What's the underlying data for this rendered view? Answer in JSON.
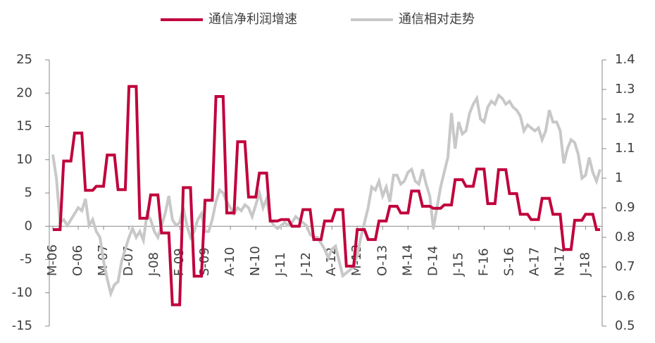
{
  "chart_data": {
    "type": "line",
    "categories": [
      "M-06",
      null,
      null,
      null,
      null,
      null,
      null,
      "O-06",
      null,
      null,
      null,
      null,
      null,
      null,
      "M-07",
      null,
      null,
      null,
      null,
      null,
      null,
      "D-07",
      null,
      null,
      null,
      null,
      null,
      null,
      "J-08",
      null,
      null,
      null,
      null,
      null,
      null,
      "F-09",
      null,
      null,
      null,
      null,
      null,
      null,
      "S-09",
      null,
      null,
      null,
      null,
      null,
      null,
      "A-10",
      null,
      null,
      null,
      null,
      null,
      null,
      "N-10",
      null,
      null,
      null,
      null,
      null,
      null,
      "J-11",
      null,
      null,
      null,
      null,
      null,
      null,
      "J-12",
      null,
      null,
      null,
      null,
      null,
      null,
      "A-12",
      null,
      null,
      null,
      null,
      null,
      null,
      "M-13",
      null,
      null,
      null,
      null,
      null,
      null,
      "O-13",
      null,
      null,
      null,
      null,
      null,
      null,
      "M-14",
      null,
      null,
      null,
      null,
      null,
      null,
      "D-14",
      null,
      null,
      null,
      null,
      null,
      null,
      "J-15",
      null,
      null,
      null,
      null,
      null,
      null,
      "F-16",
      null,
      null,
      null,
      null,
      null,
      null,
      "S-16",
      null,
      null,
      null,
      null,
      null,
      null,
      "A-17",
      null,
      null,
      null,
      null,
      null,
      null,
      "N-17",
      null,
      null,
      null,
      null,
      null,
      null,
      "J-18",
      null,
      null,
      null,
      null
    ],
    "series": [
      {
        "name": "通信净利润增速",
        "color": "#c0003c",
        "axis": "y",
        "values": [
          -0.5,
          -0.5,
          -0.5,
          9.8,
          9.8,
          9.8,
          14,
          14,
          14,
          5.4,
          5.4,
          5.4,
          6,
          6,
          6,
          10.7,
          10.7,
          10.7,
          5.5,
          5.5,
          5.5,
          21,
          21,
          21,
          1.2,
          1.2,
          1.2,
          4.7,
          4.7,
          4.7,
          -1,
          -1,
          -1,
          -11.8,
          -11.8,
          -11.8,
          5.8,
          5.8,
          5.8,
          -7.5,
          -7.5,
          -7.5,
          3.9,
          3.9,
          3.9,
          19.5,
          19.5,
          19.5,
          2,
          2,
          2,
          12.7,
          12.7,
          12.7,
          4.4,
          4.4,
          4.4,
          8,
          8,
          8,
          0.8,
          0.8,
          0.8,
          1,
          1,
          1,
          0,
          0,
          0,
          2.5,
          2.5,
          2.5,
          -2,
          -2,
          -2,
          0.8,
          0.8,
          0.8,
          2.5,
          2.5,
          2.5,
          -6,
          -6,
          -6,
          -0.5,
          -0.5,
          -0.5,
          -2,
          -2,
          -2,
          0.8,
          0.8,
          0.8,
          3,
          3,
          3,
          2,
          2,
          2,
          5.3,
          5.3,
          5.3,
          3,
          3,
          3,
          2.7,
          2.7,
          2.7,
          3.2,
          3.2,
          3.2,
          7,
          7,
          7,
          6,
          6,
          6,
          8.6,
          8.6,
          8.6,
          3.4,
          3.4,
          3.4,
          8.5,
          8.5,
          8.5,
          4.9,
          4.9,
          4.9,
          1.8,
          1.8,
          1.8,
          1,
          1,
          1,
          4.2,
          4.2,
          4.2,
          1.8,
          1.8,
          1.8,
          -3.5,
          -3.5,
          -3.5,
          0.9,
          0.9,
          0.9,
          1.8,
          1.8,
          1.8,
          -0.5,
          -0.5
        ]
      },
      {
        "name": "通信相对走势",
        "color": "#c8c8c8",
        "axis": "y2",
        "values": [
          1.08,
          1.0,
          0.85,
          0.86,
          0.84,
          0.86,
          0.88,
          0.9,
          0.89,
          0.93,
          0.84,
          0.86,
          0.82,
          0.8,
          0.72,
          0.66,
          0.61,
          0.64,
          0.65,
          0.72,
          0.76,
          0.8,
          0.83,
          0.8,
          0.82,
          0.79,
          0.88,
          0.86,
          0.82,
          0.8,
          0.84,
          0.88,
          0.94,
          0.86,
          0.84,
          0.85,
          0.9,
          0.84,
          0.8,
          0.82,
          0.86,
          0.88,
          0.82,
          0.82,
          0.86,
          0.92,
          0.96,
          0.95,
          0.92,
          0.9,
          0.88,
          0.9,
          0.89,
          0.91,
          0.9,
          0.87,
          0.91,
          0.95,
          0.9,
          0.93,
          0.86,
          0.84,
          0.83,
          0.84,
          0.85,
          0.84,
          0.85,
          0.87,
          0.86,
          0.85,
          0.84,
          0.81,
          0.8,
          0.8,
          0.78,
          0.76,
          0.73,
          0.76,
          0.77,
          0.72,
          0.67,
          0.68,
          0.69,
          0.7,
          0.74,
          0.8,
          0.85,
          0.9,
          0.97,
          0.96,
          0.99,
          0.94,
          0.97,
          0.92,
          1.01,
          1.01,
          0.98,
          0.99,
          1.02,
          1.03,
          0.99,
          0.98,
          1.03,
          0.98,
          0.94,
          0.83,
          0.9,
          0.97,
          1.02,
          1.07,
          1.22,
          1.1,
          1.19,
          1.15,
          1.16,
          1.22,
          1.25,
          1.27,
          1.2,
          1.19,
          1.24,
          1.26,
          1.25,
          1.28,
          1.27,
          1.25,
          1.26,
          1.24,
          1.23,
          1.21,
          1.16,
          1.18,
          1.17,
          1.16,
          1.17,
          1.13,
          1.16,
          1.23,
          1.19,
          1.19,
          1.16,
          1.05,
          1.1,
          1.13,
          1.12,
          1.08,
          1.0,
          1.01,
          1.07,
          1.02,
          0.99,
          1.03
        ]
      }
    ],
    "ylim": [
      -15,
      25
    ],
    "yticks": [
      -15,
      -10,
      -5,
      0,
      5,
      10,
      15,
      20,
      25
    ],
    "y2lim": [
      0.5,
      1.4
    ],
    "y2ticks": [
      0.5,
      0.6,
      0.7,
      0.8,
      0.9,
      1,
      1.1,
      1.2,
      1.3,
      1.4
    ],
    "legend": "top"
  }
}
